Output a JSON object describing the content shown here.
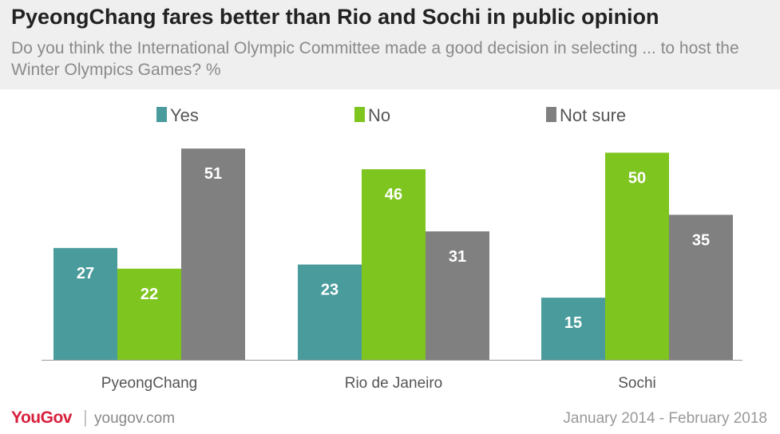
{
  "header": {
    "title": "PyeongChang fares better than Rio and Sochi in public opinion",
    "subtitle": "Do you think the International Olympic Committee made a good decision in selecting ... to host the Winter Olympics Games? %"
  },
  "footer": {
    "brand": "YouGov",
    "separator": "|",
    "site": "yougov.com",
    "date_range": "January 2014 - February 2018"
  },
  "colors": {
    "yes": "#4a9b9c",
    "no": "#7ec51f",
    "not_sure": "#808080",
    "brand": "#d7203c"
  },
  "chart_data": {
    "type": "bar",
    "title": "PyeongChang fares better than Rio and Sochi in public opinion",
    "categories": [
      "PyeongChang",
      "Rio de Janeiro",
      "Sochi"
    ],
    "series": [
      {
        "name": "Yes",
        "values": [
          27,
          23,
          15
        ]
      },
      {
        "name": "No",
        "values": [
          22,
          46,
          50
        ]
      },
      {
        "name": "Not sure",
        "values": [
          51,
          31,
          35
        ]
      }
    ],
    "ylim": [
      0,
      52
    ],
    "grid": false,
    "legend": "top-center",
    "xlabel": "",
    "ylabel": ""
  }
}
